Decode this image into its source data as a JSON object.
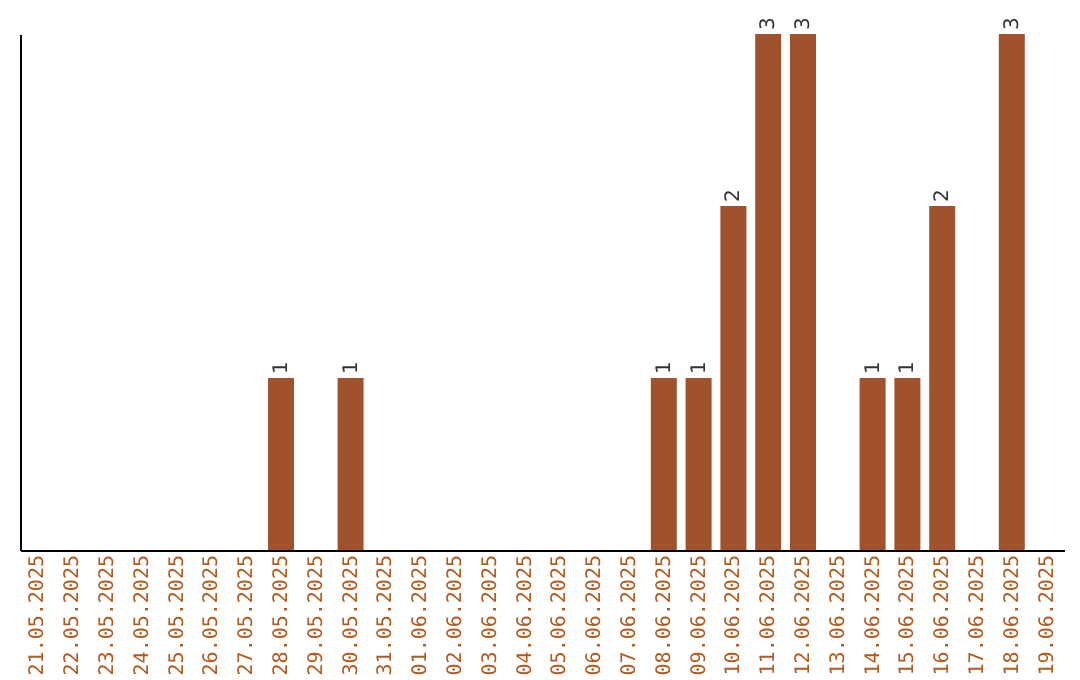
{
  "chart_data": {
    "type": "bar",
    "categories": [
      "21.05.2025",
      "22.05.2025",
      "23.05.2025",
      "24.05.2025",
      "25.05.2025",
      "26.05.2025",
      "27.05.2025",
      "28.05.2025",
      "29.05.2025",
      "30.05.2025",
      "31.05.2025",
      "01.06.2025",
      "02.06.2025",
      "03.06.2025",
      "04.06.2025",
      "05.06.2025",
      "06.06.2025",
      "07.06.2025",
      "08.06.2025",
      "09.06.2025",
      "10.06.2025",
      "11.06.2025",
      "12.06.2025",
      "13.06.2025",
      "14.06.2025",
      "15.06.2025",
      "16.06.2025",
      "17.06.2025",
      "18.06.2025",
      "19.06.2025"
    ],
    "values": [
      0,
      0,
      0,
      0,
      0,
      0,
      0,
      1,
      0,
      1,
      0,
      0,
      0,
      0,
      0,
      0,
      0,
      0,
      1,
      1,
      2,
      3,
      3,
      0,
      1,
      1,
      2,
      0,
      3,
      0
    ],
    "value_labels": [
      null,
      null,
      null,
      null,
      null,
      null,
      null,
      "1",
      null,
      "1",
      null,
      null,
      null,
      null,
      null,
      null,
      null,
      null,
      "1",
      "1",
      "2",
      "3",
      "3",
      null,
      "1",
      "1",
      "2",
      null,
      "3",
      null
    ],
    "color": "#a0522d",
    "ylim": [
      0,
      3
    ],
    "tick_labels": "x",
    "grid": false
  }
}
